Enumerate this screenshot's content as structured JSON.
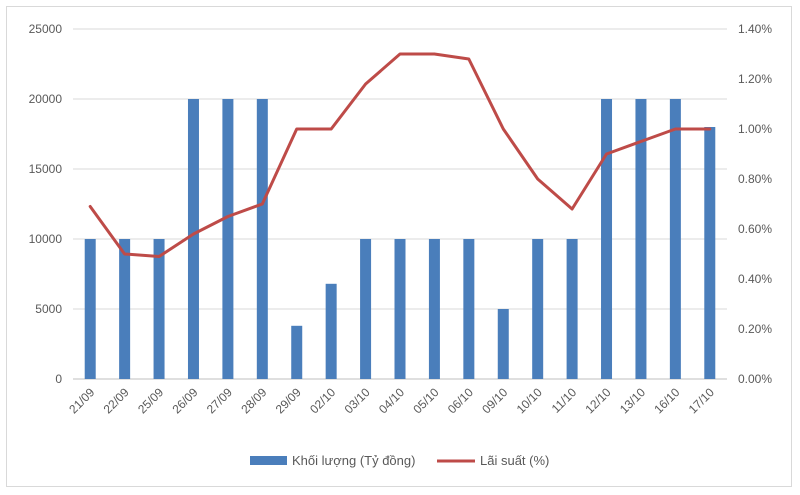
{
  "chart_data": {
    "type": "bar",
    "categories": [
      "21/09",
      "22/09",
      "25/09",
      "26/09",
      "27/09",
      "28/09",
      "29/09",
      "02/10",
      "03/10",
      "04/10",
      "05/10",
      "06/10",
      "09/10",
      "10/10",
      "11/10",
      "12/10",
      "13/10",
      "16/10",
      "17/10"
    ],
    "series": [
      {
        "name": "Khối lượng (Tỷ đồng)",
        "type": "bar",
        "axis": "left",
        "color": "#4a7ebb",
        "values": [
          10000,
          10000,
          10000,
          20000,
          20000,
          20000,
          3800,
          6800,
          10000,
          10000,
          10000,
          10000,
          5000,
          10000,
          10000,
          20000,
          20000,
          20000,
          18000
        ]
      },
      {
        "name": "Lãi suất (%)",
        "type": "line",
        "axis": "right",
        "color": "#be4b48",
        "values": [
          0.69,
          0.5,
          0.49,
          0.58,
          0.65,
          0.7,
          1.0,
          1.0,
          1.18,
          1.3,
          1.3,
          1.28,
          1.0,
          0.8,
          0.68,
          0.9,
          0.95,
          1.0,
          1.0
        ]
      }
    ],
    "y_left": {
      "min": 0,
      "max": 25000,
      "ticks": [
        "0",
        "5000",
        "10000",
        "15000",
        "20000",
        "25000"
      ]
    },
    "y_right": {
      "min": 0,
      "max": 1.4,
      "ticks": [
        "0.00%",
        "0.20%",
        "0.40%",
        "0.60%",
        "0.80%",
        "1.00%",
        "1.20%",
        "1.40%"
      ]
    },
    "grid": true,
    "legend_position": "bottom"
  }
}
